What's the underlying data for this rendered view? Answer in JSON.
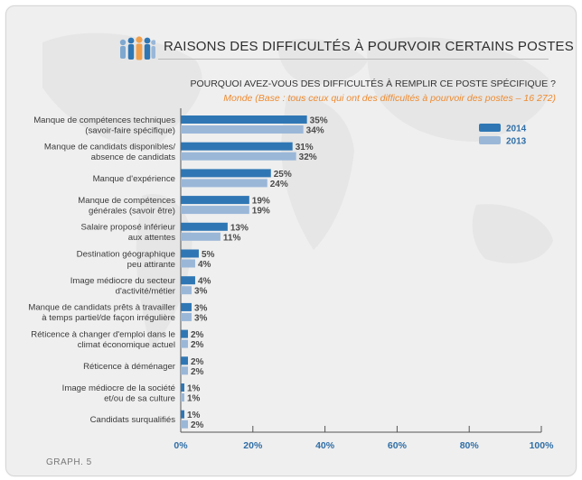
{
  "header": {
    "title": "RAISONS DES DIFFICULTÉS À POURVOIR CERTAINS POSTES",
    "question": "POURQUOI AVEZ-VOUS DES DIFFICULTÉS À REMPLIR CE POSTE SPÉCIFIQUE ?",
    "subtitle": "Monde (Base : tous ceux qui ont des difficultés à pourvoir des postes – 16 272)",
    "icon": "people-group-icon"
  },
  "footer": {
    "label": "GRAPH. 5"
  },
  "colors": {
    "series2014": "#2f77b4",
    "series2013": "#9ab7d8",
    "title_accent": "#ef8a2e",
    "axis_text": "#2f6ea6"
  },
  "chart_data": {
    "type": "bar",
    "orientation": "horizontal",
    "categories": [
      [
        "Manque de compétences techniques",
        "(savoir-faire spécifique)"
      ],
      [
        "Manque de candidats disponibles/",
        "absence de candidats"
      ],
      [
        "Manque d'expérience"
      ],
      [
        "Manque de compétences",
        "générales (savoir être)"
      ],
      [
        "Salaire proposé inférieur",
        "aux attentes"
      ],
      [
        "Destination géographique",
        "peu attirante"
      ],
      [
        "Image médiocre du secteur",
        "d'activité/métier"
      ],
      [
        "Manque de candidats prêts à travailler",
        "à temps partiel/de façon irrégulière"
      ],
      [
        "Réticence à changer d'emploi dans le",
        "climat économique actuel"
      ],
      [
        "Réticence à déménager"
      ],
      [
        "Image médiocre de la société",
        "et/ou de sa culture"
      ],
      [
        "Candidats surqualifiés"
      ]
    ],
    "series": [
      {
        "name": "2014",
        "values": [
          35,
          31,
          25,
          19,
          13,
          5,
          4,
          3,
          2,
          2,
          1,
          1
        ],
        "color": "#2f77b4"
      },
      {
        "name": "2013",
        "values": [
          34,
          32,
          24,
          19,
          11,
          4,
          3,
          3,
          2,
          2,
          1,
          2
        ],
        "color": "#9ab7d8"
      }
    ],
    "value_suffix": "%",
    "xlim": [
      0,
      100
    ],
    "xticks": [
      "0%",
      "20%",
      "40%",
      "60%",
      "80%",
      "100%"
    ],
    "legend_position": "top-right",
    "grid": false
  }
}
